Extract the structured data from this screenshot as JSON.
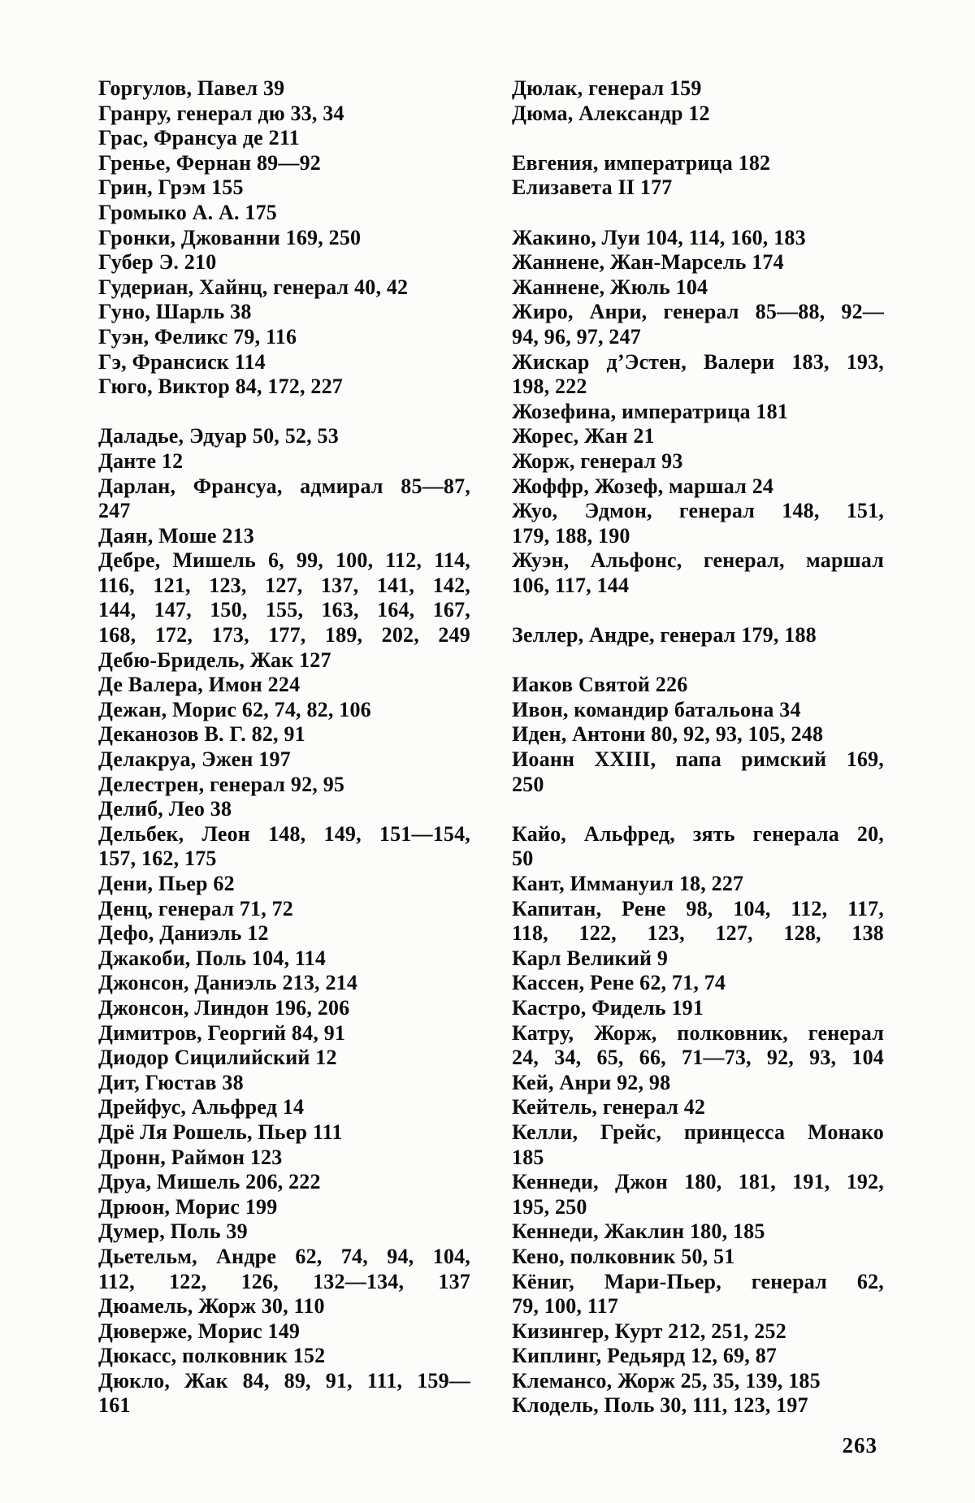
{
  "page": {
    "number": "263"
  },
  "index": {
    "columns": [
      {
        "groups": [
          {
            "entries": [
              {
                "lines": [
                  {
                    "t": "Горгулов, Павел 39",
                    "j": false
                  }
                ]
              },
              {
                "lines": [
                  {
                    "t": "Гранру, генерал дю 33, 34",
                    "j": false
                  }
                ]
              },
              {
                "lines": [
                  {
                    "t": "Грас, Франсуа де 211",
                    "j": false
                  }
                ]
              },
              {
                "lines": [
                  {
                    "t": "Гренье, Фернан 89—92",
                    "j": false
                  }
                ]
              },
              {
                "lines": [
                  {
                    "t": "Грин, Грэм 155",
                    "j": false
                  }
                ]
              },
              {
                "lines": [
                  {
                    "t": "Громыко А. А. 175",
                    "j": false
                  }
                ]
              },
              {
                "lines": [
                  {
                    "t": "Гронки, Джованни 169, 250",
                    "j": false
                  }
                ]
              },
              {
                "lines": [
                  {
                    "t": "Губер Э. 210",
                    "j": false
                  }
                ]
              },
              {
                "lines": [
                  {
                    "t": "Гудериан, Хайнц, генерал 40, 42",
                    "j": false
                  }
                ]
              },
              {
                "lines": [
                  {
                    "t": "Гуно, Шарль 38",
                    "j": false
                  }
                ]
              },
              {
                "lines": [
                  {
                    "t": "Гуэн, Феликс 79, 116",
                    "j": false
                  }
                ]
              },
              {
                "lines": [
                  {
                    "t": "Гэ, Франсиск 114",
                    "j": false
                  }
                ]
              },
              {
                "lines": [
                  {
                    "t": "Гюго, Виктор 84, 172, 227",
                    "j": false
                  }
                ]
              }
            ]
          },
          {
            "entries": [
              {
                "lines": [
                  {
                    "t": "Даладье, Эдуар 50, 52, 53",
                    "j": false
                  }
                ]
              },
              {
                "lines": [
                  {
                    "t": "Данте 12",
                    "j": false
                  }
                ]
              },
              {
                "lines": [
                  {
                    "t": "Дарлан, Франсуа, адмирал 85—87,",
                    "j": true
                  },
                  {
                    "t": "247",
                    "j": false
                  }
                ]
              },
              {
                "lines": [
                  {
                    "t": "Даян, Моше 213",
                    "j": false
                  }
                ]
              },
              {
                "lines": [
                  {
                    "t": "Дебре, Мишель 6, 99, 100, 112, 114,",
                    "j": true
                  },
                  {
                    "t": "116, 121, 123, 127, 137, 141, 142,",
                    "j": true
                  },
                  {
                    "t": "144, 147, 150, 155, 163, 164, 167,",
                    "j": true
                  },
                  {
                    "t": "168, 172, 173, 177, 189, 202, 249",
                    "j": true
                  }
                ]
              },
              {
                "lines": [
                  {
                    "t": "Дебю-Бридель, Жак 127",
                    "j": false
                  }
                ]
              },
              {
                "lines": [
                  {
                    "t": "Де Валера, Имон 224",
                    "j": false
                  }
                ]
              },
              {
                "lines": [
                  {
                    "t": "Дежан, Морис 62, 74, 82, 106",
                    "j": false
                  }
                ]
              },
              {
                "lines": [
                  {
                    "t": "Деканозов В. Г. 82, 91",
                    "j": false
                  }
                ]
              },
              {
                "lines": [
                  {
                    "t": "Делакруа, Эжен 197",
                    "j": false
                  }
                ]
              },
              {
                "lines": [
                  {
                    "t": "Делестрен, генерал 92, 95",
                    "j": false
                  }
                ]
              },
              {
                "lines": [
                  {
                    "t": "Делиб, Лео 38",
                    "j": false
                  }
                ]
              },
              {
                "lines": [
                  {
                    "t": "Дельбек, Леон 148, 149, 151—154,",
                    "j": true
                  },
                  {
                    "t": "157, 162, 175",
                    "j": false
                  }
                ]
              },
              {
                "lines": [
                  {
                    "t": "Дени, Пьер 62",
                    "j": false
                  }
                ]
              },
              {
                "lines": [
                  {
                    "t": "Денц, генерал 71, 72",
                    "j": false
                  }
                ]
              },
              {
                "lines": [
                  {
                    "t": "Дефо, Даниэль 12",
                    "j": false
                  }
                ]
              },
              {
                "lines": [
                  {
                    "t": "Джакоби, Поль 104, 114",
                    "j": false
                  }
                ]
              },
              {
                "lines": [
                  {
                    "t": "Джонсон, Даниэль 213, 214",
                    "j": false
                  }
                ]
              },
              {
                "lines": [
                  {
                    "t": "Джонсон, Линдон 196, 206",
                    "j": false
                  }
                ]
              },
              {
                "lines": [
                  {
                    "t": "Димитров, Георгий 84, 91",
                    "j": false
                  }
                ]
              },
              {
                "lines": [
                  {
                    "t": "Диодор Сицилийский 12",
                    "j": false
                  }
                ]
              },
              {
                "lines": [
                  {
                    "t": "Дит, Гюстав 38",
                    "j": false
                  }
                ]
              },
              {
                "lines": [
                  {
                    "t": "Дрейфус, Альфред 14",
                    "j": false
                  }
                ]
              },
              {
                "lines": [
                  {
                    "t": "Дрё Ля Рошель, Пьер 111",
                    "j": false
                  }
                ]
              },
              {
                "lines": [
                  {
                    "t": "Дронн, Раймон 123",
                    "j": false
                  }
                ]
              },
              {
                "lines": [
                  {
                    "t": "Друа, Мишель 206, 222",
                    "j": false
                  }
                ]
              },
              {
                "lines": [
                  {
                    "t": "Дрюон, Морис 199",
                    "j": false
                  }
                ]
              },
              {
                "lines": [
                  {
                    "t": "Думер, Поль 39",
                    "j": false
                  }
                ]
              },
              {
                "lines": [
                  {
                    "t": "Дьетельм, Андре 62, 74, 94, 104,",
                    "j": true
                  },
                  {
                    "t": "112, 122, 126, 132—134, 137",
                    "j": true
                  }
                ]
              },
              {
                "lines": [
                  {
                    "t": "Дюамель, Жорж 30, 110",
                    "j": false
                  }
                ]
              },
              {
                "lines": [
                  {
                    "t": "Дюверже, Морис 149",
                    "j": false
                  }
                ]
              },
              {
                "lines": [
                  {
                    "t": "Дюкасс, полковник 152",
                    "j": false
                  }
                ]
              },
              {
                "lines": [
                  {
                    "t": "Дюкло, Жак 84, 89, 91, 111, 159—",
                    "j": true
                  },
                  {
                    "t": "161",
                    "j": false
                  }
                ]
              }
            ]
          }
        ]
      },
      {
        "groups": [
          {
            "entries": [
              {
                "lines": [
                  {
                    "t": "Дюлак, генерал 159",
                    "j": false
                  }
                ]
              },
              {
                "lines": [
                  {
                    "t": "Дюма, Александр 12",
                    "j": false
                  }
                ]
              }
            ]
          },
          {
            "entries": [
              {
                "lines": [
                  {
                    "t": "Евгения, императрица 182",
                    "j": false
                  }
                ]
              },
              {
                "lines": [
                  {
                    "t": "Елизавета II 177",
                    "j": false
                  }
                ]
              }
            ]
          },
          {
            "entries": [
              {
                "lines": [
                  {
                    "t": "Жакино, Луи 104, 114, 160, 183",
                    "j": false
                  }
                ]
              },
              {
                "lines": [
                  {
                    "t": "Жаннене, Жан-Марсель 174",
                    "j": false
                  }
                ]
              },
              {
                "lines": [
                  {
                    "t": "Жаннене, Жюль 104",
                    "j": false
                  }
                ]
              },
              {
                "lines": [
                  {
                    "t": "Жиро, Анри, генерал 85—88, 92—",
                    "j": true
                  },
                  {
                    "t": "94, 96, 97, 247",
                    "j": false
                  }
                ]
              },
              {
                "lines": [
                  {
                    "t": "Жискар д’Эстен, Валери 183, 193,",
                    "j": true
                  },
                  {
                    "t": "198, 222",
                    "j": false
                  }
                ]
              },
              {
                "lines": [
                  {
                    "t": "Жозефина, императрица 181",
                    "j": false
                  }
                ]
              },
              {
                "lines": [
                  {
                    "t": "Жорес, Жан 21",
                    "j": false
                  }
                ]
              },
              {
                "lines": [
                  {
                    "t": "Жорж, генерал 93",
                    "j": false
                  }
                ]
              },
              {
                "lines": [
                  {
                    "t": "Жоффр, Жозеф, маршал 24",
                    "j": false
                  }
                ]
              },
              {
                "lines": [
                  {
                    "t": "Жуо, Эдмон, генерал 148, 151,",
                    "j": true
                  },
                  {
                    "t": "179, 188, 190",
                    "j": false
                  }
                ]
              },
              {
                "lines": [
                  {
                    "t": "Жуэн, Альфонс, генерал, маршал",
                    "j": true
                  },
                  {
                    "t": "106, 117, 144",
                    "j": false
                  }
                ]
              }
            ]
          },
          {
            "entries": [
              {
                "lines": [
                  {
                    "t": "Зеллер, Андре, генерал 179, 188",
                    "j": false
                  }
                ]
              }
            ]
          },
          {
            "entries": [
              {
                "lines": [
                  {
                    "t": "Иаков Святой 226",
                    "j": false
                  }
                ]
              },
              {
                "lines": [
                  {
                    "t": "Ивон, командир батальона 34",
                    "j": false
                  }
                ]
              },
              {
                "lines": [
                  {
                    "t": "Иден, Антони 80, 92, 93, 105, 248",
                    "j": false
                  }
                ]
              },
              {
                "lines": [
                  {
                    "t": "Иоанн XXIII, папа римский 169,",
                    "j": true
                  },
                  {
                    "t": "250",
                    "j": false
                  }
                ]
              }
            ]
          },
          {
            "entries": [
              {
                "lines": [
                  {
                    "t": "Кайо, Альфред, зять генерала 20,",
                    "j": true
                  },
                  {
                    "t": "50",
                    "j": false
                  }
                ]
              },
              {
                "lines": [
                  {
                    "t": "Кант, Иммануил 18, 227",
                    "j": false
                  }
                ]
              },
              {
                "lines": [
                  {
                    "t": "Капитан, Рене 98, 104, 112, 117,",
                    "j": true
                  },
                  {
                    "t": "118, 122, 123, 127, 128, 138",
                    "j": true
                  }
                ]
              },
              {
                "lines": [
                  {
                    "t": "Карл Великий 9",
                    "j": false
                  }
                ]
              },
              {
                "lines": [
                  {
                    "t": "Кассен, Рене 62, 71, 74",
                    "j": false
                  }
                ]
              },
              {
                "lines": [
                  {
                    "t": "Кастро, Фидель 191",
                    "j": false
                  }
                ]
              },
              {
                "lines": [
                  {
                    "t": "Катру, Жорж, полковник, генерал",
                    "j": true
                  },
                  {
                    "t": "24, 34, 65, 66, 71—73, 92, 93, 104",
                    "j": true
                  }
                ]
              },
              {
                "lines": [
                  {
                    "t": "Кей, Анри 92, 98",
                    "j": false
                  }
                ]
              },
              {
                "lines": [
                  {
                    "t": "Кейтель, генерал 42",
                    "j": false
                  }
                ]
              },
              {
                "lines": [
                  {
                    "t": "Келли, Грейс, принцесса Монако",
                    "j": true
                  },
                  {
                    "t": "185",
                    "j": false
                  }
                ]
              },
              {
                "lines": [
                  {
                    "t": "Кеннеди, Джон 180, 181, 191, 192,",
                    "j": true
                  },
                  {
                    "t": "195, 250",
                    "j": false
                  }
                ]
              },
              {
                "lines": [
                  {
                    "t": "Кеннеди, Жаклин 180, 185",
                    "j": false
                  }
                ]
              },
              {
                "lines": [
                  {
                    "t": "Кено, полковник 50, 51",
                    "j": false
                  }
                ]
              },
              {
                "lines": [
                  {
                    "t": "Кёниг, Мари-Пьер, генерал 62,",
                    "j": true
                  },
                  {
                    "t": "79, 100, 117",
                    "j": false
                  }
                ]
              },
              {
                "lines": [
                  {
                    "t": "Кизингер, Курт 212, 251, 252",
                    "j": false
                  }
                ]
              },
              {
                "lines": [
                  {
                    "t": "Киплинг, Редьярд 12, 69, 87",
                    "j": false
                  }
                ]
              },
              {
                "lines": [
                  {
                    "t": "Клемансо, Жорж 25, 35, 139, 185",
                    "j": false
                  }
                ]
              },
              {
                "lines": [
                  {
                    "t": "Клодель, Поль 30, 111, 123, 197",
                    "j": false
                  }
                ]
              }
            ]
          }
        ]
      }
    ]
  }
}
